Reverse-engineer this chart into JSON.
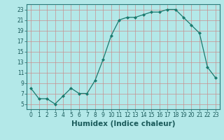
{
  "x": [
    0,
    1,
    2,
    3,
    4,
    5,
    6,
    7,
    8,
    9,
    10,
    11,
    12,
    13,
    14,
    15,
    16,
    17,
    18,
    19,
    20,
    21,
    22,
    23
  ],
  "y": [
    8,
    6,
    6,
    5,
    6.5,
    8,
    7,
    7,
    9.5,
    13.5,
    18,
    21,
    21.5,
    21.5,
    22,
    22.5,
    22.5,
    23,
    23,
    21.5,
    20,
    18.5,
    12,
    10
  ],
  "line_color": "#1a7a6e",
  "marker": "D",
  "marker_size": 2.0,
  "bg_color": "#b3e8e8",
  "grid_color_major": "#d08080",
  "grid_color_minor": "#d08080",
  "xlabel": "Humidex (Indice chaleur)",
  "xlim": [
    -0.5,
    23.5
  ],
  "ylim": [
    4,
    24
  ],
  "yticks": [
    5,
    7,
    9,
    11,
    13,
    15,
    17,
    19,
    21,
    23
  ],
  "xticks": [
    0,
    1,
    2,
    3,
    4,
    5,
    6,
    7,
    8,
    9,
    10,
    11,
    12,
    13,
    14,
    15,
    16,
    17,
    18,
    19,
    20,
    21,
    22,
    23
  ],
  "tick_fontsize": 5.5,
  "xlabel_fontsize": 7.5
}
